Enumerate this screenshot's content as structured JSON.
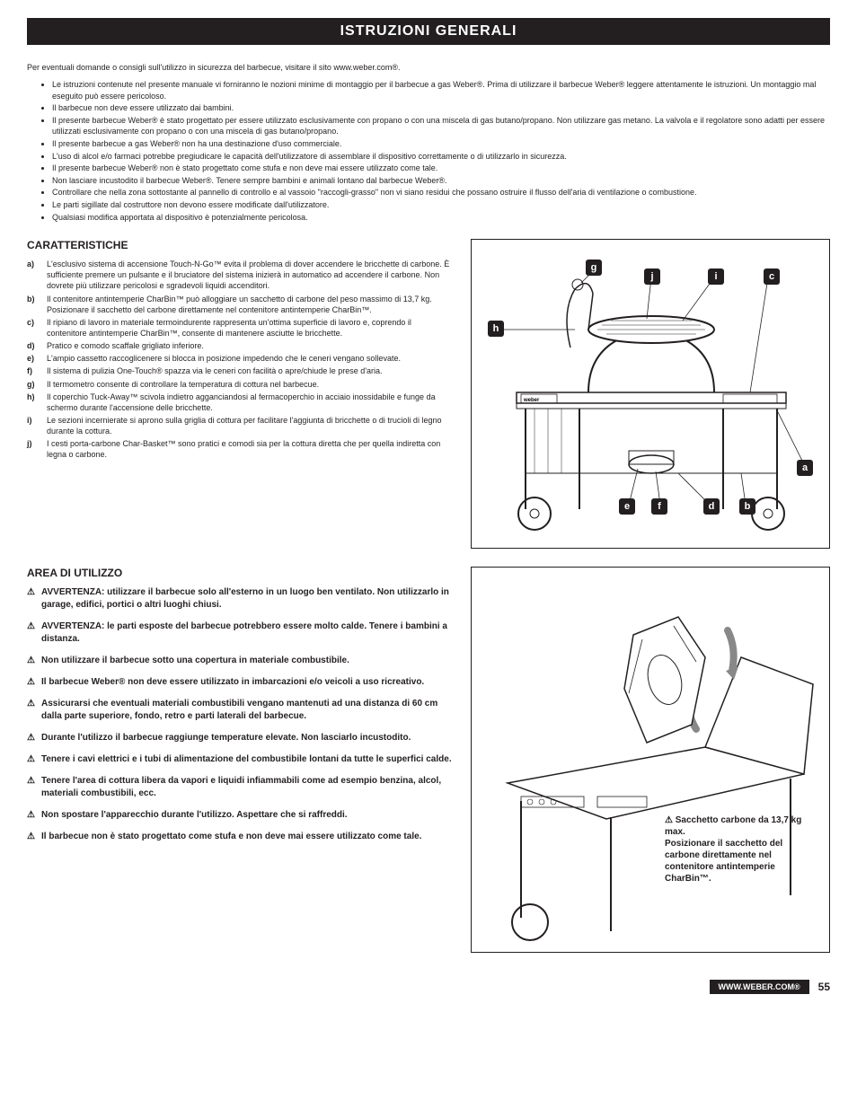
{
  "title": "ISTRUZIONI GENERALI",
  "intro_text": "Per eventuali domande o consigli sull'utilizzo in sicurezza del barbecue, visitare il sito www.weber.com®.",
  "intro_bullets": [
    "Le istruzioni contenute nel presente manuale vi forniranno le nozioni minime di montaggio per il barbecue a gas Weber®. Prima di utilizzare il barbecue Weber® leggere attentamente le istruzioni. Un montaggio mal eseguito può essere pericoloso.",
    "Il barbecue non deve essere utilizzato dai bambini.",
    "Il presente barbecue Weber® è stato progettato per essere utilizzato esclusivamente con propano o con una miscela di gas butano/propano. Non utilizzare gas metano. La valvola e il regolatore sono adatti per essere utilizzati esclusivamente con propano o con una miscela di gas butano/propano.",
    "Il presente barbecue a gas Weber® non ha una destinazione d'uso commerciale.",
    "L'uso di alcol e/o farmaci potrebbe pregiudicare le capacità dell'utilizzatore di assemblare il dispositivo correttamente o di utilizzarlo in sicurezza.",
    "Il presente barbecue Weber® non è stato progettato come stufa e non deve mai essere utilizzato come tale.",
    "Non lasciare incustodito il barbecue Weber®. Tenere sempre bambini e animali lontano dal barbecue Weber®.",
    "Controllare che nella zona sottostante al pannello di controllo e al vassoio \"raccogli-grasso\" non vi siano residui che possano ostruire il flusso dell'aria di ventilazione o combustione.",
    "Le parti sigillate dal costruttore non devono essere modificate dall'utilizzatore.",
    "Qualsiasi modifica apportata al dispositivo è potenzialmente pericolosa."
  ],
  "features_title": "CARATTERISTICHE",
  "features": [
    {
      "marker": "a)",
      "text": "L'esclusivo sistema di accensione Touch-N-Go™ evita il problema di dover accendere le bricchette di carbone. È sufficiente premere un pulsante e il bruciatore del sistema inizierà in automatico ad accendere il carbone. Non dovrete più utilizzare pericolosi e sgradevoli liquidi accenditori."
    },
    {
      "marker": "b)",
      "text": "Il contenitore antintemperie CharBin™ può alloggiare un sacchetto di carbone del peso massimo di 13,7 kg. Posizionare il sacchetto del carbone direttamente nel contenitore antintemperie CharBin™."
    },
    {
      "marker": "c)",
      "text": "Il ripiano di lavoro in materiale termoindurente rappresenta un'ottima superficie di lavoro e, coprendo il contenitore antintemperie CharBin™, consente di mantenere asciutte le bricchette."
    },
    {
      "marker": "d)",
      "text": "Pratico e comodo scaffale grigliato inferiore."
    },
    {
      "marker": "e)",
      "text": "L'ampio cassetto raccoglicenere si blocca in posizione impedendo che le ceneri vengano sollevate."
    },
    {
      "marker": "f)",
      "text": "Il sistema di pulizia One-Touch® spazza via le ceneri con facilità o apre/chiude le prese d'aria."
    },
    {
      "marker": "g)",
      "text": "Il termometro consente di controllare la temperatura di cottura nel barbecue."
    },
    {
      "marker": "h)",
      "text": "Il coperchio Tuck-Away™ scivola indietro agganciandosi al fermacoperchio in acciaio inossidabile e funge da schermo durante l'accensione delle bricchette."
    },
    {
      "marker": "i)",
      "text": "Le sezioni incernierate si aprono sulla griglia di cottura per facilitare l'aggiunta di bricchette o di trucioli di legno durante la cottura."
    },
    {
      "marker": "j)",
      "text": "I cesti porta-carbone Char-Basket™ sono pratici e comodi sia per la cottura diretta che per quella indiretta con legna o carbone."
    }
  ],
  "usage_title": "AREA DI UTILIZZO",
  "warnings": [
    "AVVERTENZA: utilizzare il barbecue solo all'esterno in un luogo ben ventilato. Non utilizzarlo in garage, edifici, portici o altri luoghi chiusi.",
    "AVVERTENZA: le parti esposte del barbecue potrebbero essere molto calde. Tenere i bambini a distanza.",
    "Non utilizzare il barbecue sotto una copertura in materiale combustibile.",
    "Il barbecue Weber® non deve essere utilizzato in imbarcazioni e/o veicoli a uso ricreativo.",
    "Assicurarsi che eventuali materiali combustibili vengano mantenuti ad una distanza di 60 cm dalla parte superiore, fondo, retro e parti laterali del barbecue.",
    "Durante l'utilizzo il barbecue raggiunge temperature elevate. Non lasciarlo incustodito.",
    "Tenere i cavi elettrici e i tubi di alimentazione del combustibile lontani da tutte le superfici calde.",
    "Tenere l'area di cottura libera da vapori e liquidi infiammabili come ad esempio benzina, alcol, materiali combustibili, ecc.",
    "Non spostare l'apparecchio durante l'utilizzo. Aspettare che si raffreddi.",
    "Il barbecue non è stato progettato come stufa e non deve mai essere utilizzato come tale."
  ],
  "diagram1_labels": {
    "g": "g",
    "j": "j",
    "i": "i",
    "c": "c",
    "h": "h",
    "a": "a",
    "e": "e",
    "f": "f",
    "d": "d",
    "b": "b"
  },
  "callout_text": "⚠ Sacchetto carbone da 13,7 kg max.\nPosizionare il sacchetto del carbone direttamente nel contenitore antintemperie CharBin™.",
  "footer_url": "WWW.WEBER.COM®",
  "page_number": "55"
}
